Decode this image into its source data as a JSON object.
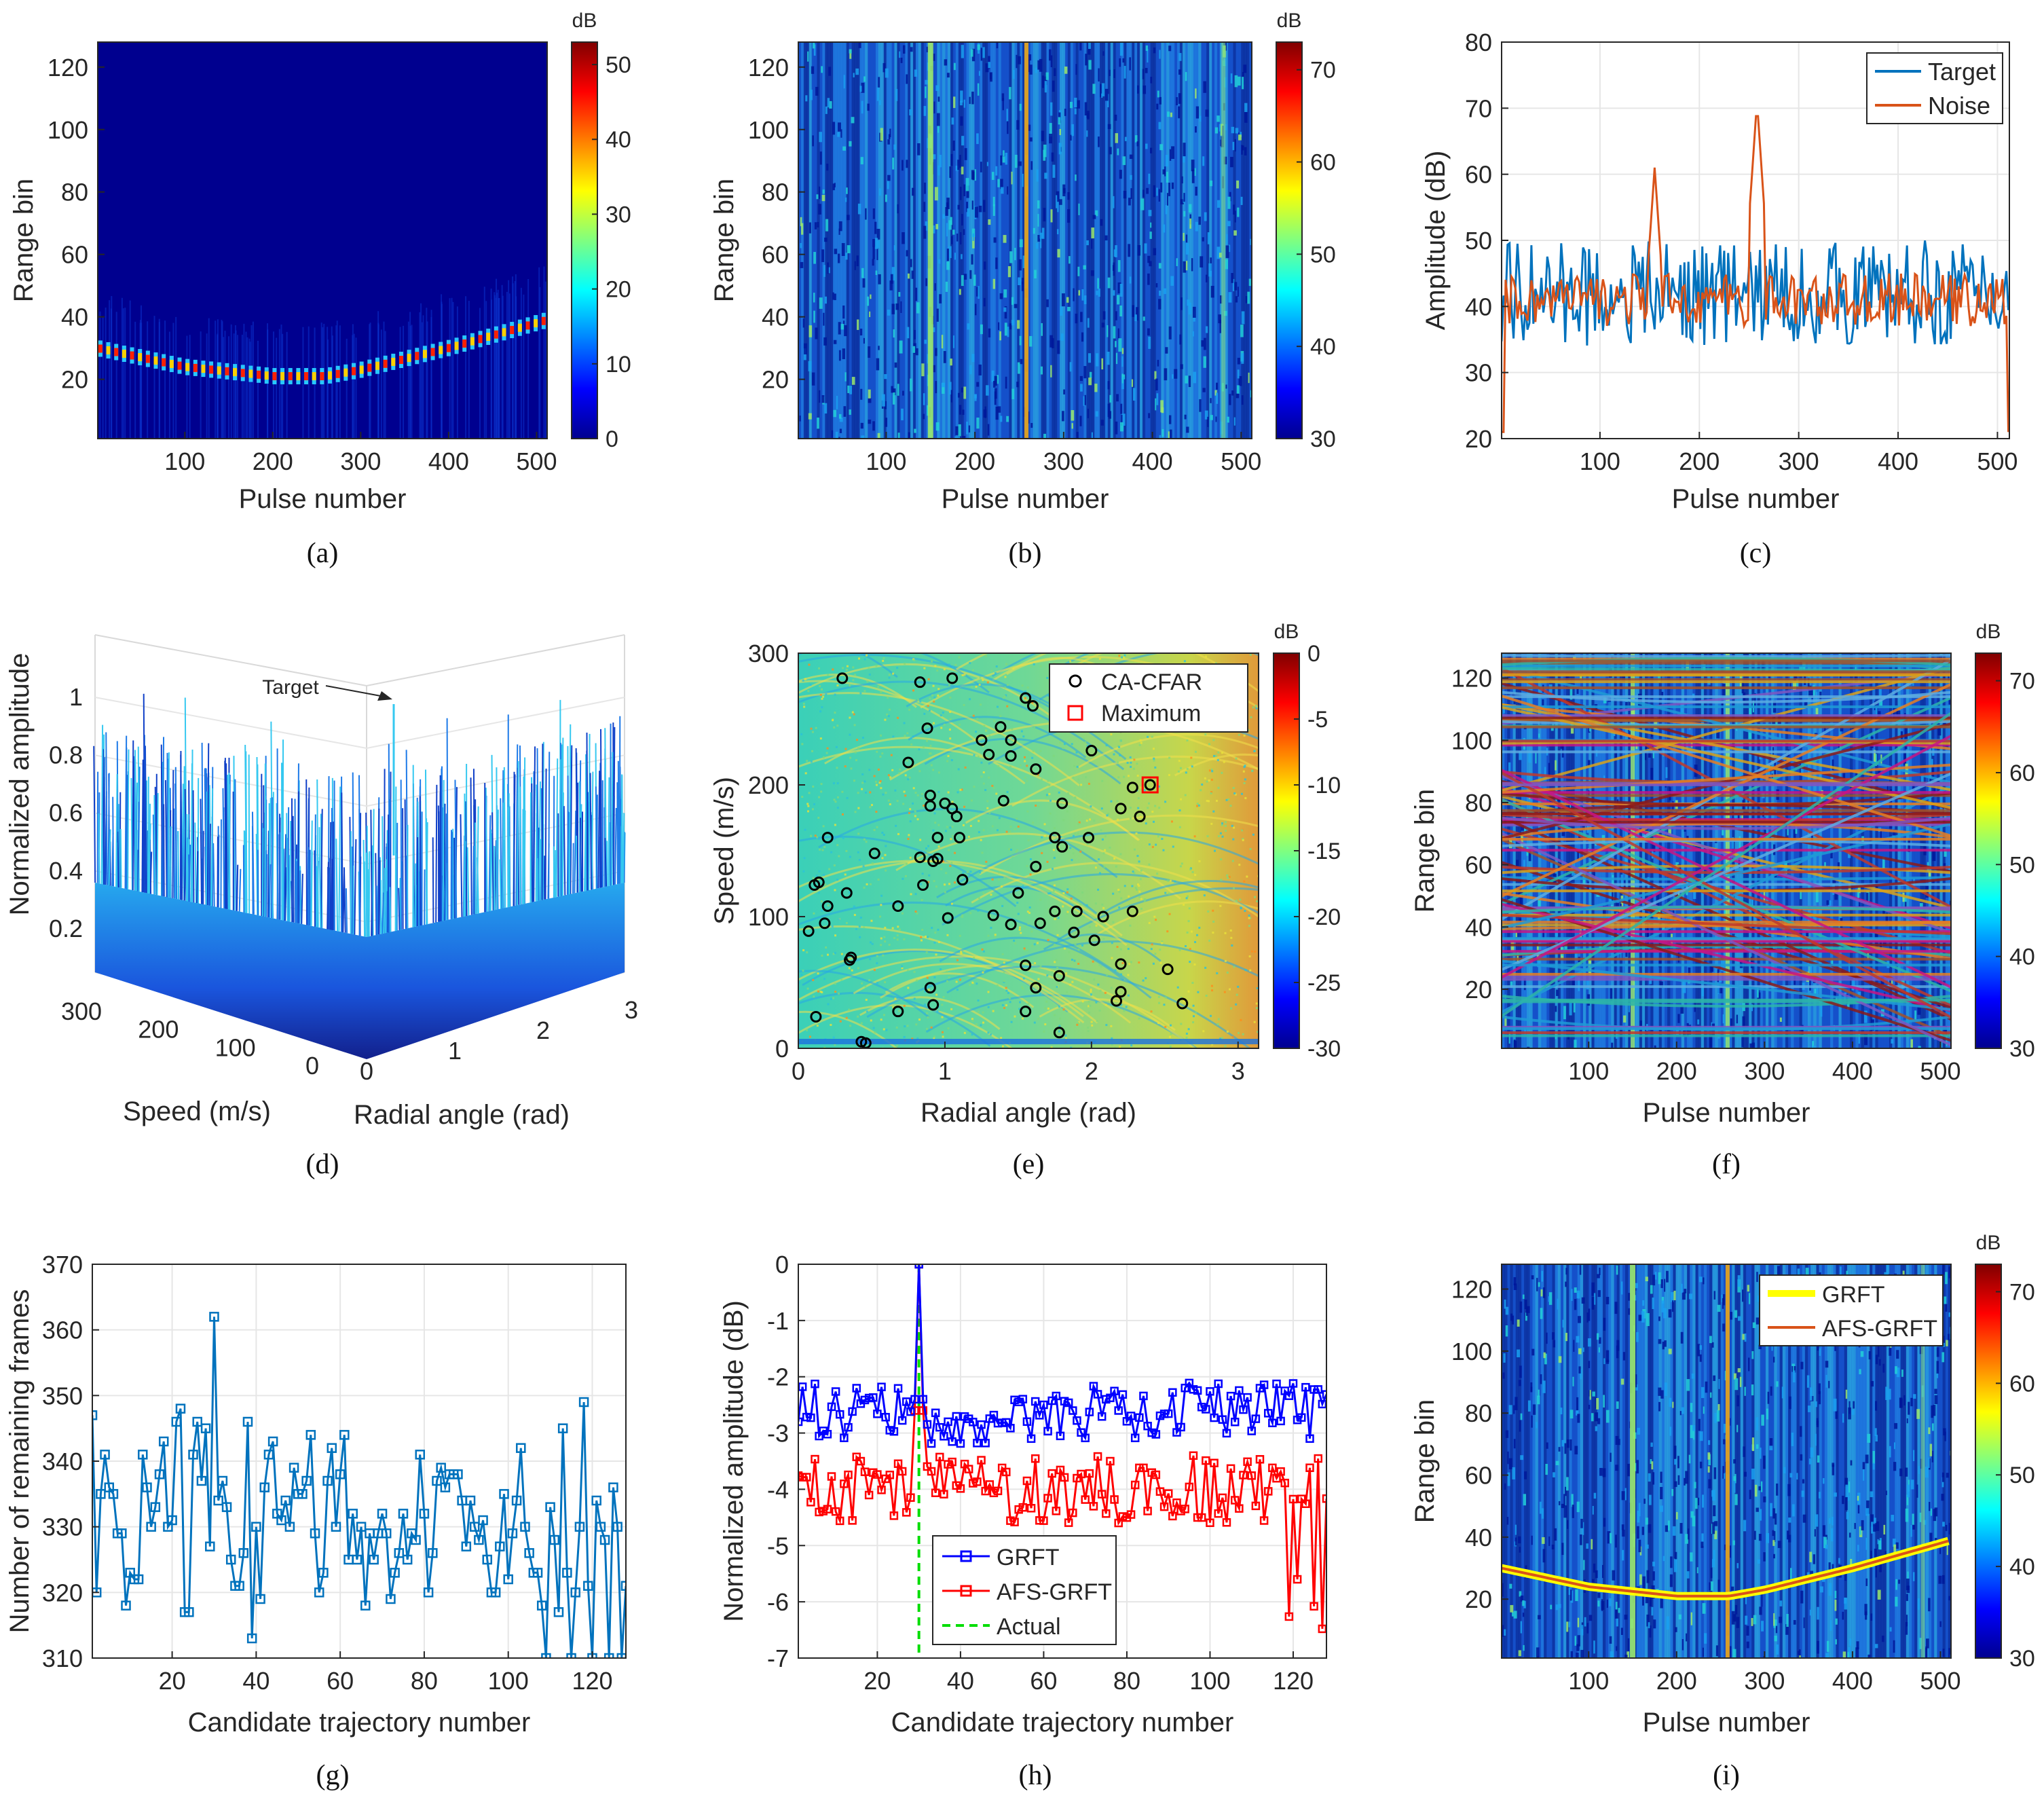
{
  "colors": {
    "target": "#0072BD",
    "noise": "#D95319",
    "grft_blue": "#0000FF",
    "afs_red": "#FF0000",
    "actual_green": "#00DD00",
    "grft_yellow": "#FFFF00",
    "candidate_blue": "#0072BD",
    "heatmap_bg": "#1a4fd0"
  },
  "colorbar_unit": "dB",
  "chart_data": [
    {
      "id": "a",
      "type": "heatmap",
      "caption": "(a)",
      "xlabel": "Pulse number",
      "ylabel": "Range bin",
      "xlim": [
        1,
        512
      ],
      "ylim": [
        1,
        128
      ],
      "xticks": [
        100,
        200,
        300,
        400,
        500
      ],
      "yticks": [
        20,
        40,
        60,
        80,
        100,
        120
      ],
      "colorbar": {
        "label": "dB",
        "min": 0,
        "max": 53,
        "ticks": [
          0,
          10,
          20,
          30,
          40,
          50
        ]
      },
      "trajectory": {
        "pulse": [
          1,
          100,
          200,
          260,
          300,
          400,
          512
        ],
        "range_bin": [
          30,
          24,
          21,
          21,
          23,
          30,
          39
        ]
      }
    },
    {
      "id": "b",
      "type": "heatmap",
      "caption": "(b)",
      "xlabel": "Pulse number",
      "ylabel": "Range bin",
      "xlim": [
        1,
        512
      ],
      "ylim": [
        1,
        128
      ],
      "xticks": [
        100,
        200,
        300,
        400,
        500
      ],
      "yticks": [
        20,
        40,
        60,
        80,
        100,
        120
      ],
      "colorbar": {
        "label": "dB",
        "min": 30,
        "max": 73,
        "ticks": [
          30,
          40,
          50,
          60,
          70
        ]
      },
      "bright_columns": [
        150,
        258,
        480
      ]
    },
    {
      "id": "c",
      "type": "line",
      "caption": "(c)",
      "xlabel": "Pulse number",
      "ylabel": "Amplitude (dB)",
      "xlim": [
        1,
        512
      ],
      "ylim": [
        20,
        80
      ],
      "xticks": [
        100,
        200,
        300,
        400,
        500
      ],
      "yticks": [
        20,
        30,
        40,
        50,
        60,
        70,
        80
      ],
      "legend": [
        "Target",
        "Noise"
      ],
      "series": [
        {
          "name": "Target",
          "mean": 42,
          "spread": 8
        },
        {
          "name": "Noise",
          "mean": 41,
          "spread": 4,
          "peaks": [
            [
              155,
              61
            ],
            [
              258,
              71
            ]
          ]
        }
      ]
    },
    {
      "id": "d",
      "type": "surface",
      "caption": "(d)",
      "xlabel": "Speed (m/s)",
      "ylabel": "Radial angle (rad)",
      "zlabel": "Normalized amplitude",
      "speed_ticks": [
        0,
        100,
        200,
        300
      ],
      "angle_ticks": [
        0,
        1,
        2,
        3
      ],
      "zticks": [
        0.2,
        0.4,
        0.6,
        0.8,
        1
      ],
      "annotation": "Target",
      "peak_value": 1
    },
    {
      "id": "e",
      "type": "heatmap",
      "caption": "(e)",
      "xlabel": "Radial angle (rad)",
      "ylabel": "Speed (m/s)",
      "xlim": [
        0,
        3.14
      ],
      "ylim": [
        0,
        300
      ],
      "xticks": [
        0,
        1,
        2,
        3
      ],
      "yticks": [
        0,
        100,
        200,
        300
      ],
      "colorbar": {
        "label": "dB",
        "min": -30,
        "max": 0,
        "ticks": [
          0,
          -5,
          -10,
          -15,
          -20,
          -25,
          -30
        ]
      },
      "legend": [
        "CA-CFAR",
        "Maximum"
      ],
      "maximum": [
        2.4,
        200
      ],
      "cfar_points": [
        [
          0.3,
          281
        ],
        [
          0.83,
          278
        ],
        [
          1.05,
          281
        ],
        [
          1.55,
          266
        ],
        [
          1.6,
          260
        ],
        [
          1.88,
          281
        ],
        [
          1.9,
          254
        ],
        [
          2.2,
          244
        ],
        [
          0.88,
          243
        ],
        [
          1.38,
          244
        ],
        [
          1.25,
          234
        ],
        [
          1.45,
          234
        ],
        [
          1.3,
          223
        ],
        [
          1.45,
          222
        ],
        [
          1.62,
          212
        ],
        [
          2.0,
          226
        ],
        [
          0.75,
          217
        ],
        [
          0.9,
          192
        ],
        [
          1.05,
          182
        ],
        [
          1.08,
          176
        ],
        [
          1.0,
          186
        ],
        [
          1.4,
          188
        ],
        [
          1.8,
          186
        ],
        [
          2.28,
          198
        ],
        [
          0.9,
          184
        ],
        [
          1.1,
          160
        ],
        [
          0.95,
          160
        ],
        [
          1.75,
          160
        ],
        [
          1.98,
          160
        ],
        [
          2.2,
          182
        ],
        [
          2.33,
          176
        ],
        [
          0.2,
          160
        ],
        [
          0.52,
          148
        ],
        [
          0.83,
          145
        ],
        [
          0.92,
          142
        ],
        [
          0.95,
          144
        ],
        [
          1.12,
          128
        ],
        [
          1.62,
          138
        ],
        [
          1.8,
          153
        ],
        [
          0.14,
          126
        ],
        [
          0.11,
          124
        ],
        [
          0.2,
          108
        ],
        [
          0.33,
          118
        ],
        [
          0.18,
          95
        ],
        [
          0.85,
          124
        ],
        [
          1.5,
          118
        ],
        [
          1.33,
          101
        ],
        [
          1.45,
          94
        ],
        [
          1.75,
          104
        ],
        [
          1.9,
          104
        ],
        [
          2.08,
          100
        ],
        [
          2.28,
          104
        ],
        [
          1.65,
          95
        ],
        [
          0.07,
          89
        ],
        [
          0.36,
          69
        ],
        [
          0.68,
          108
        ],
        [
          1.02,
          99
        ],
        [
          1.88,
          88
        ],
        [
          2.02,
          82
        ],
        [
          2.2,
          64
        ],
        [
          2.52,
          60
        ],
        [
          0.35,
          67
        ],
        [
          0.9,
          46
        ],
        [
          1.55,
          63
        ],
        [
          1.62,
          46
        ],
        [
          1.78,
          55
        ],
        [
          2.17,
          36
        ],
        [
          2.2,
          43
        ],
        [
          2.62,
          34
        ],
        [
          0.12,
          24
        ],
        [
          0.68,
          28
        ],
        [
          0.92,
          33
        ],
        [
          1.78,
          12
        ],
        [
          1.55,
          28
        ],
        [
          0.43,
          5
        ],
        [
          0.46,
          4
        ]
      ]
    },
    {
      "id": "f",
      "type": "heatmap",
      "caption": "(f)",
      "xlabel": "Pulse number",
      "ylabel": "Range bin",
      "xlim": [
        1,
        512
      ],
      "ylim": [
        1,
        128
      ],
      "xticks": [
        100,
        200,
        300,
        400,
        500
      ],
      "yticks": [
        20,
        40,
        60,
        80,
        100,
        120
      ],
      "colorbar": {
        "label": "dB",
        "min": 30,
        "max": 73,
        "ticks": [
          30,
          40,
          50,
          60,
          70
        ]
      },
      "candidate_trajectories": 128
    },
    {
      "id": "g",
      "type": "line",
      "caption": "(g)",
      "xlabel": "Candidate trajectory number",
      "ylabel": "Number of remaining frames",
      "xlim": [
        1,
        128
      ],
      "ylim": [
        310,
        370
      ],
      "xticks": [
        20,
        40,
        60,
        80,
        100,
        120
      ],
      "yticks": [
        310,
        320,
        330,
        340,
        350,
        360,
        370
      ],
      "series": [
        {
          "name": "remaining frames",
          "values": [
            347,
            320,
            335,
            341,
            336,
            335,
            329,
            329,
            318,
            323,
            322,
            322,
            341,
            336,
            330,
            333,
            338,
            343,
            330,
            331,
            346,
            348,
            317,
            317,
            341,
            346,
            337,
            345,
            327,
            362,
            334,
            337,
            333,
            325,
            321,
            321,
            326,
            346,
            313,
            330,
            319,
            336,
            341,
            343,
            332,
            331,
            334,
            330,
            339,
            335,
            335,
            337,
            344,
            329,
            320,
            323,
            337,
            342,
            330,
            338,
            344,
            325,
            332,
            325,
            330,
            318,
            329,
            325,
            329,
            332,
            329,
            319,
            323,
            326,
            332,
            325,
            329,
            328,
            341,
            332,
            320,
            326,
            337,
            339,
            336,
            338,
            338,
            338,
            334,
            327,
            334,
            330,
            328,
            331,
            325,
            320,
            320,
            327,
            335,
            322,
            329,
            334,
            342,
            330,
            326,
            323,
            323,
            318,
            310,
            333,
            328,
            317,
            345,
            323,
            310,
            320,
            330,
            349,
            321,
            310,
            334,
            330,
            328,
            310,
            336,
            330,
            310,
            321
          ]
        }
      ]
    },
    {
      "id": "h",
      "type": "line",
      "caption": "(h)",
      "xlabel": "Candidate trajectory number",
      "ylabel": "Normalized amplitude (dB)",
      "xlim": [
        1,
        128
      ],
      "ylim": [
        -7,
        0
      ],
      "xticks": [
        20,
        40,
        60,
        80,
        100,
        120
      ],
      "yticks": [
        -7,
        -6,
        -5,
        -4,
        -3,
        -2,
        -1,
        0
      ],
      "legend": [
        "GRFT",
        "AFS-GRFT",
        "Actual"
      ],
      "actual_x": 30,
      "peak": [
        30,
        0
      ]
    },
    {
      "id": "i",
      "type": "heatmap",
      "caption": "(i)",
      "xlabel": "Pulse number",
      "ylabel": "Range bin",
      "xlim": [
        1,
        512
      ],
      "ylim": [
        1,
        128
      ],
      "xticks": [
        100,
        200,
        300,
        400,
        500
      ],
      "yticks": [
        20,
        40,
        60,
        80,
        100,
        120
      ],
      "colorbar": {
        "label": "dB",
        "min": 30,
        "max": 73,
        "ticks": [
          30,
          40,
          50,
          60,
          70
        ]
      },
      "legend": [
        "GRFT",
        "AFS-GRFT"
      ],
      "trajectory": {
        "pulse": [
          1,
          100,
          200,
          260,
          300,
          400,
          512
        ],
        "range_bin": [
          30,
          24,
          21,
          21,
          23,
          30,
          39
        ]
      }
    }
  ]
}
